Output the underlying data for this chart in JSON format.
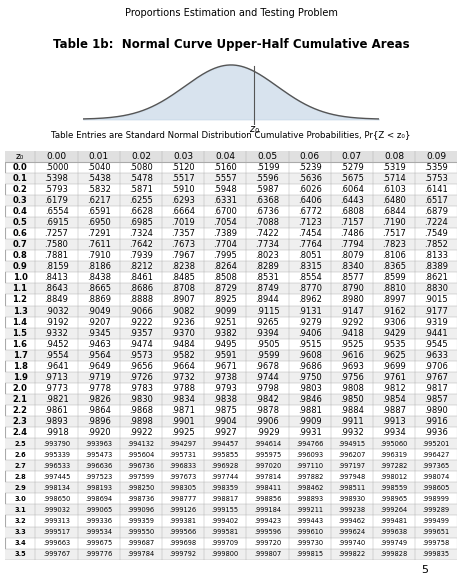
{
  "title": "Proportions Estimation and Testing Problem",
  "subtitle": "Table 1b:  Normal Curve Upper-Half Cumulative Areas",
  "caption": "Table Entries are Standard Normal Distribution Cumulative Probabilities, Pr{Z < z₀}",
  "page_number": "5",
  "col_headers": [
    "z₀",
    "0.00",
    "0.01",
    "0.02",
    "0.03",
    "0.04",
    "0.05",
    "0.06",
    "0.07",
    "0.08",
    "0.09"
  ],
  "rows": [
    [
      "0.0",
      ".5000",
      ".5040",
      ".5080",
      ".5120",
      ".5160",
      ".5199",
      ".5239",
      ".5279",
      ".5319",
      ".5359"
    ],
    [
      "0.1",
      ".5398",
      ".5438",
      ".5478",
      ".5517",
      ".5557",
      ".5596",
      ".5636",
      ".5675",
      ".5714",
      ".5753"
    ],
    [
      "0.2",
      ".5793",
      ".5832",
      ".5871",
      ".5910",
      ".5948",
      ".5987",
      ".6026",
      ".6064",
      ".6103",
      ".6141"
    ],
    [
      "0.3",
      ".6179",
      ".6217",
      ".6255",
      ".6293",
      ".6331",
      ".6368",
      ".6406",
      ".6443",
      ".6480",
      ".6517"
    ],
    [
      "0.4",
      ".6554",
      ".6591",
      ".6628",
      ".6664",
      ".6700",
      ".6736",
      ".6772",
      ".6808",
      ".6844",
      ".6879"
    ],
    [
      "0.5",
      ".6915",
      ".6950",
      ".6985",
      ".7019",
      ".7054",
      ".7088",
      ".7123",
      ".7157",
      ".7190",
      ".7224"
    ],
    [
      "0.6",
      ".7257",
      ".7291",
      ".7324",
      ".7357",
      ".7389",
      ".7422",
      ".7454",
      ".7486",
      ".7517",
      ".7549"
    ],
    [
      "0.7",
      ".7580",
      ".7611",
      ".7642",
      ".7673",
      ".7704",
      ".7734",
      ".7764",
      ".7794",
      ".7823",
      ".7852"
    ],
    [
      "0.8",
      ".7881",
      ".7910",
      ".7939",
      ".7967",
      ".7995",
      ".8023",
      ".8051",
      ".8079",
      ".8106",
      ".8133"
    ],
    [
      "0.9",
      ".8159",
      ".8186",
      ".8212",
      ".8238",
      ".8264",
      ".8289",
      ".8315",
      ".8340",
      ".8365",
      ".8389"
    ],
    [
      "1.0",
      ".8413",
      ".8438",
      ".8461",
      ".8485",
      ".8508",
      ".8531",
      ".8554",
      ".8577",
      ".8599",
      ".8621"
    ],
    [
      "1.1",
      ".8643",
      ".8665",
      ".8686",
      ".8708",
      ".8729",
      ".8749",
      ".8770",
      ".8790",
      ".8810",
      ".8830"
    ],
    [
      "1.2",
      ".8849",
      ".8869",
      ".8888",
      ".8907",
      ".8925",
      ".8944",
      ".8962",
      ".8980",
      ".8997",
      ".9015"
    ],
    [
      "1.3",
      ".9032",
      ".9049",
      ".9066",
      ".9082",
      ".9099",
      ".9115",
      ".9131",
      ".9147",
      ".9162",
      ".9177"
    ],
    [
      "1.4",
      ".9192",
      ".9207",
      ".9222",
      ".9236",
      ".9251",
      ".9265",
      ".9279",
      ".9292",
      ".9306",
      ".9319"
    ],
    [
      "1.5",
      ".9332",
      ".9345",
      ".9357",
      ".9370",
      ".9382",
      ".9394",
      ".9406",
      ".9418",
      ".9429",
      ".9441"
    ],
    [
      "1.6",
      ".9452",
      ".9463",
      ".9474",
      ".9484",
      ".9495",
      ".9505",
      ".9515",
      ".9525",
      ".9535",
      ".9545"
    ],
    [
      "1.7",
      ".9554",
      ".9564",
      ".9573",
      ".9582",
      ".9591",
      ".9599",
      ".9608",
      ".9616",
      ".9625",
      ".9633"
    ],
    [
      "1.8",
      ".9641",
      ".9649",
      ".9656",
      ".9664",
      ".9671",
      ".9678",
      ".9686",
      ".9693",
      ".9699",
      ".9706"
    ],
    [
      "1.9",
      ".9713",
      ".9719",
      ".9726",
      ".9732",
      ".9738",
      ".9744",
      ".9750",
      ".9756",
      ".9761",
      ".9767"
    ],
    [
      "2.0",
      ".9773",
      ".9778",
      ".9783",
      ".9788",
      ".9793",
      ".9798",
      ".9803",
      ".9808",
      ".9812",
      ".9817"
    ],
    [
      "2.1",
      ".9821",
      ".9826",
      ".9830",
      ".9834",
      ".9838",
      ".9842",
      ".9846",
      ".9850",
      ".9854",
      ".9857"
    ],
    [
      "2.2",
      ".9861",
      ".9864",
      ".9868",
      ".9871",
      ".9875",
      ".9878",
      ".9881",
      ".9884",
      ".9887",
      ".9890"
    ],
    [
      "2.3",
      ".9893",
      ".9896",
      ".9898",
      ".9901",
      ".9904",
      ".9906",
      ".9909",
      ".9911",
      ".9913",
      ".9916"
    ],
    [
      "2.4",
      ".9918",
      ".9920",
      ".9922",
      ".9925",
      ".9927",
      ".9929",
      ".9931",
      ".9932",
      ".9934",
      ".9936"
    ],
    [
      "2.5",
      ".993790",
      ".993963",
      ".994132",
      ".994297",
      ".994457",
      ".994614",
      ".994766",
      ".994915",
      ".995060",
      ".995201"
    ],
    [
      "2.6",
      ".995339",
      ".995473",
      ".995604",
      ".995731",
      ".995855",
      ".995975",
      ".996093",
      ".996207",
      ".996319",
      ".996427"
    ],
    [
      "2.7",
      ".996533",
      ".996636",
      ".996736",
      ".996833",
      ".996928",
      ".997020",
      ".997110",
      ".997197",
      ".997282",
      ".997365"
    ],
    [
      "2.8",
      ".997445",
      ".997523",
      ".997599",
      ".997673",
      ".997744",
      ".997814",
      ".997882",
      ".997948",
      ".998012",
      ".998074"
    ],
    [
      "2.9",
      ".998134",
      ".998193",
      ".998250",
      ".998305",
      ".998359",
      ".998411",
      ".998462",
      ".998511",
      ".998559",
      ".998605"
    ],
    [
      "3.0",
      ".998650",
      ".998694",
      ".998736",
      ".998777",
      ".998817",
      ".998856",
      ".998893",
      ".998930",
      ".998965",
      ".998999"
    ],
    [
      "3.1",
      ".999032",
      ".999065",
      ".999096",
      ".999126",
      ".999155",
      ".999184",
      ".999211",
      ".999238",
      ".999264",
      ".999289"
    ],
    [
      "3.2",
      ".999313",
      ".999336",
      ".999359",
      ".999381",
      ".999402",
      ".999423",
      ".999443",
      ".999462",
      ".999481",
      ".999499"
    ],
    [
      "3.3",
      ".999517",
      ".999534",
      ".999550",
      ".999566",
      ".999581",
      ".999596",
      ".999610",
      ".999624",
      ".999638",
      ".999651"
    ],
    [
      "3.4",
      ".999663",
      ".999675",
      ".999687",
      ".999698",
      ".999709",
      ".999720",
      ".999730",
      ".999740",
      ".999749",
      ".999758"
    ],
    [
      "3.5",
      ".999767",
      ".999776",
      ".999784",
      ".999792",
      ".999800",
      ".999807",
      ".999815",
      ".999822",
      ".999828",
      ".999835"
    ]
  ],
  "table_bg": "#e0e0e0",
  "row_colors": [
    "#ffffff",
    "#efefef"
  ],
  "border_color": "#aaaaaa",
  "text_color": "#000000",
  "curve_fill_color": "#c8d8e8",
  "curve_line_color": "#555555"
}
